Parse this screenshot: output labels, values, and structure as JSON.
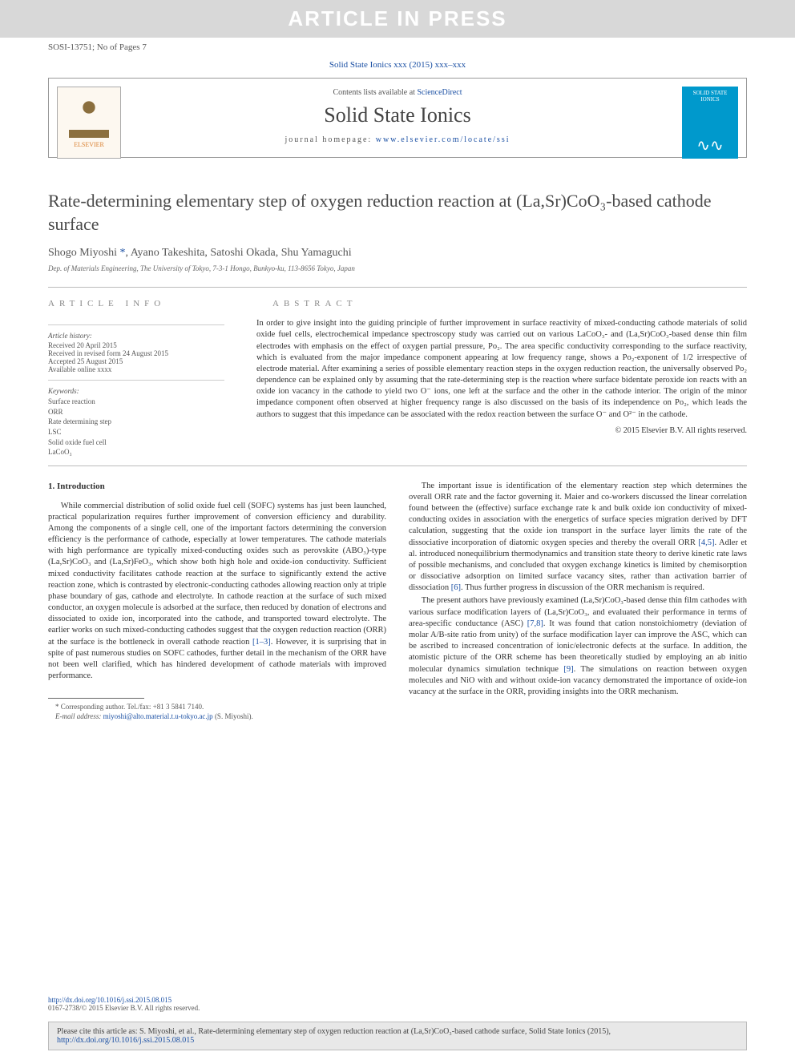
{
  "banner": "ARTICLE IN PRESS",
  "header_meta": "SOSI-13751; No of Pages 7",
  "journal_ref_prefix": "Solid State Ionics xxx (2015) xxx–xxx",
  "contents_prefix": "Contents lists available at ",
  "contents_link": "ScienceDirect",
  "journal_name": "Solid State Ionics",
  "homepage_prefix": "journal homepage: ",
  "homepage_url": "www.elsevier.com/locate/ssi",
  "elsevier_label": "ELSEVIER",
  "cover_label": "SOLID STATE IONICS",
  "title": "Rate-determining elementary step of oxygen reduction reaction at (La,Sr)CoO₃-based cathode surface",
  "authors_text": "Shogo Miyoshi ",
  "authors_star": "*",
  "authors_rest": ", Ayano Takeshita, Satoshi Okada, Shu Yamaguchi",
  "affiliation": "Dep. of Materials Engineering, The University of Tokyo, 7-3-1 Hongo, Bunkyo-ku, 113-8656 Tokyo, Japan",
  "info_head": "ARTICLE INFO",
  "abs_head": "ABSTRACT",
  "history_head": "Article history:",
  "history": {
    "received": "Received 20 April 2015",
    "revised": "Received in revised form 24 August 2015",
    "accepted": "Accepted 25 August 2015",
    "online": "Available online xxxx"
  },
  "keywords_head": "Keywords:",
  "keywords": [
    "Surface reaction",
    "ORR",
    "Rate determining step",
    "LSC",
    "Solid oxide fuel cell",
    "LaCoO₃"
  ],
  "abstract": "In order to give insight into the guiding principle of further improvement in surface reactivity of mixed-conducting cathode materials of solid oxide fuel cells, electrochemical impedance spectroscopy study was carried out on various LaCoO₃- and (La,Sr)CoO₃-based dense thin film electrodes with emphasis on the effect of oxygen partial pressure, Po₂. The area specific conductivity corresponding to the surface reactivity, which is evaluated from the major impedance component appearing at low frequency range, shows a Po₂-exponent of 1/2 irrespective of electrode material. After examining a series of possible elementary reaction steps in the oxygen reduction reaction, the universally observed Po₂ dependence can be explained only by assuming that the rate-determining step is the reaction where surface bidentate peroxide ion reacts with an oxide ion vacancy in the cathode to yield two O⁻ ions, one left at the surface and the other in the cathode interior. The origin of the minor impedance component often observed at higher frequency range is also discussed on the basis of its independence on Po₂, which leads the authors to suggest that this impedance can be associated with the redox reaction between the surface O⁻ and O²⁻ in the cathode.",
  "copyright": "© 2015 Elsevier B.V. All rights reserved.",
  "intro_head": "1. Introduction",
  "col1_p1": "While commercial distribution of solid oxide fuel cell (SOFC) systems has just been launched, practical popularization requires further improvement of conversion efficiency and durability. Among the components of a single cell, one of the important factors determining the conversion efficiency is the performance of cathode, especially at lower temperatures. The cathode materials with high performance are typically mixed-conducting oxides such as perovskite (ABO₃)-type (La,Sr)CoO₃ and (La,Sr)FeO₃, which show both high hole and oxide-ion conductivity. Sufficient mixed conductivity facilitates cathode reaction at the surface to significantly extend the active reaction zone, which is contrasted by electronic-conducting cathodes allowing reaction only at triple phase boundary of gas, cathode and electrolyte. In cathode reaction at the surface of such mixed conductor, an oxygen molecule is adsorbed at the surface, then reduced by donation of electrons and dissociated to oxide ion, incorporated into the cathode, and transported toward electrolyte. The earlier works on such mixed-conducting cathodes suggest that the oxygen reduction reaction (ORR) at the surface is the bottleneck in overall cathode reaction ",
  "col1_ref1": "[1–3]",
  "col1_p1b": ". However, it is surprising that in spite of past numerous studies on SOFC cathodes, further detail in the mechanism of the ORR have not been well clarified, which has hindered development of cathode materials with improved performance.",
  "corr_label": "* Corresponding author. Tel./fax: +81 3 5841 7140.",
  "email_label": "E-mail address: ",
  "email": "miyoshi@alto.material.t.u-tokyo.ac.jp",
  "email_suffix": " (S. Miyoshi).",
  "col2_p1": "The important issue is identification of the elementary reaction step which determines the overall ORR rate and the factor governing it. Maier and co-workers discussed the linear correlation found between the (effective) surface exchange rate k and bulk oxide ion conductivity of mixed-conducting oxides in association with the energetics of surface species migration derived by DFT calculation, suggesting that the oxide ion transport in the surface layer limits the rate of the dissociative incorporation of diatomic oxygen species and thereby the overall ORR ",
  "col2_ref1": "[4,5]",
  "col2_p1b": ". Adler et al. introduced nonequilibrium thermodynamics and transition state theory to derive kinetic rate laws of possible mechanisms, and concluded that oxygen exchange kinetics is limited by chemisorption or dissociative adsorption on limited surface vacancy sites, rather than activation barrier of dissociation ",
  "col2_ref2": "[6]",
  "col2_p1c": ". Thus further progress in discussion of the ORR mechanism is required.",
  "col2_p2": "The present authors have previously examined (La,Sr)CoO₃-based dense thin film cathodes with various surface modification layers of (La,Sr)CoO₃, and evaluated their performance in terms of area-specific conductance (ASC) ",
  "col2_ref3": "[7,8]",
  "col2_p2b": ". It was found that cation nonstoichiometry (deviation of molar A/B-site ratio from unity) of the surface modification layer can improve the ASC, which can be ascribed to increased concentration of ionic/electronic defects at the surface. In addition, the atomistic picture of the ORR scheme has been theoretically studied by employing an ab initio molecular dynamics simulation technique ",
  "col2_ref4": "[9]",
  "col2_p2c": ". The simulations on reaction between oxygen molecules and NiO with and without oxide-ion vacancy demonstrated the importance of oxide-ion vacancy at the surface in the ORR, providing insights into the ORR mechanism.",
  "doi": "http://dx.doi.org/10.1016/j.ssi.2015.08.015",
  "issn": "0167-2738/© 2015 Elsevier B.V. All rights reserved.",
  "cite_prefix": "Please cite this article as: S. Miyoshi, et al., Rate-determining elementary step of oxygen reduction reaction at (La,Sr)CoO₃-based cathode surface, Solid State Ionics (2015), ",
  "cite_doi": "http://dx.doi.org/10.1016/j.ssi.2015.08.015",
  "colors": {
    "link": "#1a4fa3",
    "banner_bg": "#d8d8d8",
    "banner_fg": "#ffffff",
    "cover_bg": "#0099cc",
    "cite_bg": "#e8e8e8"
  }
}
